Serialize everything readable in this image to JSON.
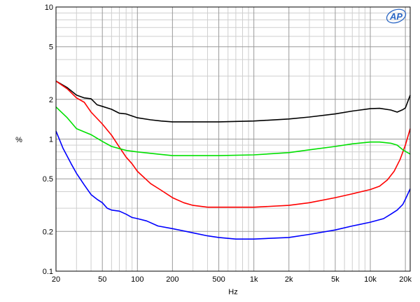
{
  "chart_data": {
    "type": "line",
    "title": "",
    "xlabel": "Hz",
    "ylabel": "%",
    "x_scale": "log",
    "y_scale": "log",
    "xlim": [
      20,
      22000
    ],
    "ylim": [
      0.1,
      10
    ],
    "grid": true,
    "legend": "none",
    "logo": "AP",
    "x_ticks": [
      {
        "value": 20,
        "label": "20"
      },
      {
        "value": 50,
        "label": "50"
      },
      {
        "value": 100,
        "label": "100"
      },
      {
        "value": 200,
        "label": "200"
      },
      {
        "value": 500,
        "label": "500"
      },
      {
        "value": 1000,
        "label": "1k"
      },
      {
        "value": 2000,
        "label": "2k"
      },
      {
        "value": 5000,
        "label": "5k"
      },
      {
        "value": 10000,
        "label": "10k"
      },
      {
        "value": 20000,
        "label": "20k"
      }
    ],
    "y_ticks": [
      {
        "value": 10,
        "label": "10"
      },
      {
        "value": 5,
        "label": "5"
      },
      {
        "value": 2,
        "label": "2"
      },
      {
        "value": 1,
        "label": "1"
      },
      {
        "value": 0.5,
        "label": "0.5"
      },
      {
        "value": 0.2,
        "label": "0.2"
      },
      {
        "value": 0.1,
        "label": "0.1"
      }
    ],
    "series": [
      {
        "color": "#000000",
        "points": [
          [
            20,
            2.75
          ],
          [
            25,
            2.45
          ],
          [
            30,
            2.15
          ],
          [
            35,
            2.05
          ],
          [
            40,
            2.02
          ],
          [
            45,
            1.82
          ],
          [
            50,
            1.77
          ],
          [
            60,
            1.68
          ],
          [
            70,
            1.57
          ],
          [
            80,
            1.55
          ],
          [
            100,
            1.45
          ],
          [
            130,
            1.4
          ],
          [
            160,
            1.37
          ],
          [
            200,
            1.35
          ],
          [
            300,
            1.35
          ],
          [
            500,
            1.35
          ],
          [
            1000,
            1.37
          ],
          [
            2000,
            1.42
          ],
          [
            3000,
            1.47
          ],
          [
            5000,
            1.55
          ],
          [
            7000,
            1.63
          ],
          [
            10000,
            1.7
          ],
          [
            12000,
            1.71
          ],
          [
            15000,
            1.66
          ],
          [
            17000,
            1.6
          ],
          [
            19000,
            1.67
          ],
          [
            20000,
            1.72
          ],
          [
            22000,
            2.15
          ]
        ]
      },
      {
        "color": "#ff0000",
        "points": [
          [
            20,
            2.75
          ],
          [
            25,
            2.4
          ],
          [
            30,
            2.05
          ],
          [
            35,
            1.9
          ],
          [
            40,
            1.6
          ],
          [
            50,
            1.3
          ],
          [
            60,
            1.07
          ],
          [
            70,
            0.87
          ],
          [
            80,
            0.73
          ],
          [
            90,
            0.65
          ],
          [
            100,
            0.57
          ],
          [
            130,
            0.46
          ],
          [
            160,
            0.41
          ],
          [
            200,
            0.36
          ],
          [
            250,
            0.33
          ],
          [
            300,
            0.315
          ],
          [
            400,
            0.305
          ],
          [
            500,
            0.305
          ],
          [
            1000,
            0.305
          ],
          [
            2000,
            0.315
          ],
          [
            3000,
            0.33
          ],
          [
            5000,
            0.36
          ],
          [
            7000,
            0.385
          ],
          [
            10000,
            0.415
          ],
          [
            12000,
            0.44
          ],
          [
            14000,
            0.49
          ],
          [
            16000,
            0.57
          ],
          [
            18000,
            0.7
          ],
          [
            20000,
            0.9
          ],
          [
            22000,
            1.2
          ]
        ]
      },
      {
        "color": "#00e000",
        "points": [
          [
            20,
            1.75
          ],
          [
            25,
            1.45
          ],
          [
            30,
            1.2
          ],
          [
            40,
            1.08
          ],
          [
            50,
            0.96
          ],
          [
            60,
            0.88
          ],
          [
            80,
            0.82
          ],
          [
            100,
            0.8
          ],
          [
            150,
            0.77
          ],
          [
            200,
            0.75
          ],
          [
            300,
            0.75
          ],
          [
            500,
            0.75
          ],
          [
            1000,
            0.76
          ],
          [
            2000,
            0.79
          ],
          [
            3000,
            0.83
          ],
          [
            5000,
            0.88
          ],
          [
            7000,
            0.92
          ],
          [
            10000,
            0.95
          ],
          [
            12000,
            0.95
          ],
          [
            15000,
            0.93
          ],
          [
            17000,
            0.9
          ],
          [
            19000,
            0.83
          ],
          [
            22000,
            0.77
          ]
        ]
      },
      {
        "color": "#0000ff",
        "points": [
          [
            20,
            1.15
          ],
          [
            23,
            0.85
          ],
          [
            27,
            0.65
          ],
          [
            30,
            0.55
          ],
          [
            35,
            0.45
          ],
          [
            40,
            0.38
          ],
          [
            45,
            0.35
          ],
          [
            50,
            0.33
          ],
          [
            55,
            0.3
          ],
          [
            60,
            0.29
          ],
          [
            70,
            0.285
          ],
          [
            80,
            0.27
          ],
          [
            90,
            0.255
          ],
          [
            100,
            0.25
          ],
          [
            120,
            0.24
          ],
          [
            150,
            0.22
          ],
          [
            200,
            0.21
          ],
          [
            300,
            0.195
          ],
          [
            400,
            0.185
          ],
          [
            500,
            0.18
          ],
          [
            700,
            0.175
          ],
          [
            1000,
            0.175
          ],
          [
            2000,
            0.18
          ],
          [
            3000,
            0.19
          ],
          [
            5000,
            0.205
          ],
          [
            7000,
            0.22
          ],
          [
            10000,
            0.235
          ],
          [
            13000,
            0.25
          ],
          [
            15000,
            0.27
          ],
          [
            17000,
            0.29
          ],
          [
            19000,
            0.32
          ],
          [
            20000,
            0.35
          ],
          [
            22000,
            0.42
          ]
        ]
      }
    ]
  }
}
